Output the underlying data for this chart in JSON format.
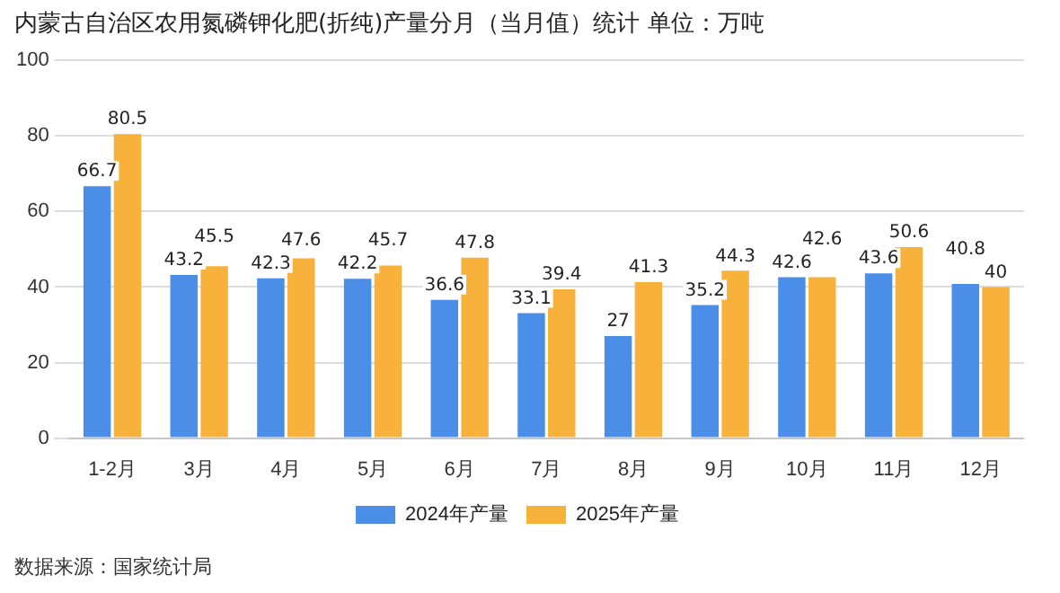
{
  "chart_data": {
    "type": "bar",
    "title": "内蒙古自治区农用氮磷钾化肥(折纯)产量分月（当月值）统计  单位：万吨",
    "categories": [
      "1-2月",
      "3月",
      "4月",
      "5月",
      "6月",
      "7月",
      "8月",
      "9月",
      "10月",
      "11月",
      "12月"
    ],
    "series": [
      {
        "name": "2024年产量",
        "color": "#4a8ee8",
        "values": [
          66.7,
          43.2,
          42.3,
          42.2,
          36.6,
          33.1,
          27,
          35.2,
          42.6,
          43.6,
          40.8
        ]
      },
      {
        "name": "2025年产量",
        "color": "#f8b13a",
        "values": [
          80.5,
          45.5,
          47.6,
          45.7,
          47.8,
          39.4,
          41.3,
          44.3,
          42.6,
          50.6,
          40
        ]
      }
    ],
    "ylim": [
      0,
      100
    ],
    "yticks": [
      0,
      20,
      40,
      60,
      80,
      100
    ],
    "grid": "y",
    "legend": "bottom",
    "data_labels": true,
    "annotations": [
      "数据来源：国家统计局"
    ]
  }
}
